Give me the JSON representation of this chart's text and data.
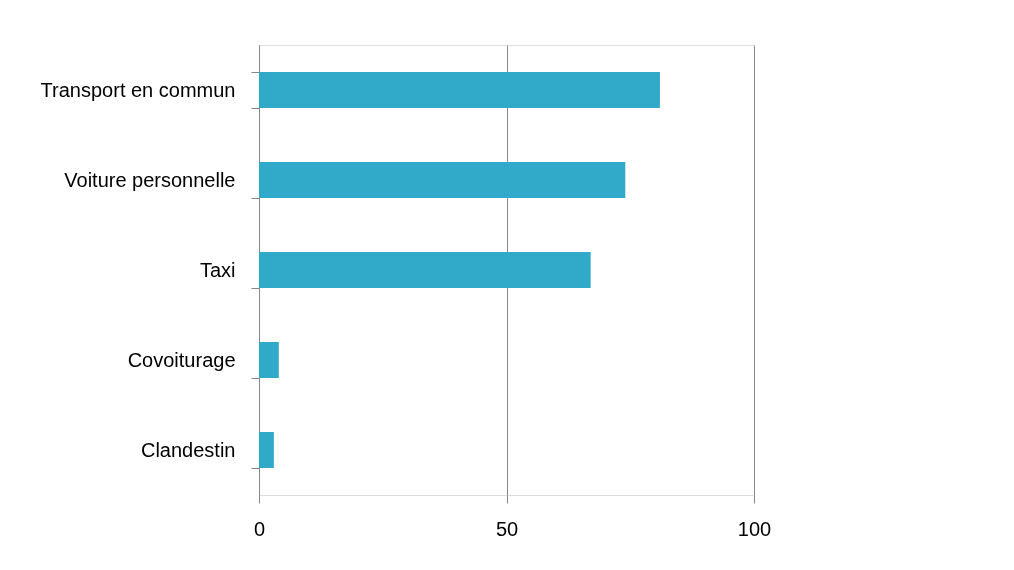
{
  "chart_data": {
    "type": "bar",
    "orientation": "horizontal",
    "categories": [
      "Transport en commun",
      "Voiture personnelle",
      "Taxi",
      "Covoiturage",
      "Clandestin"
    ],
    "values": [
      81,
      74,
      67,
      4,
      3
    ],
    "color": "#31a9c9",
    "xlim": [
      0,
      100
    ],
    "xticks": [
      0,
      50,
      100
    ],
    "grid": "x"
  }
}
